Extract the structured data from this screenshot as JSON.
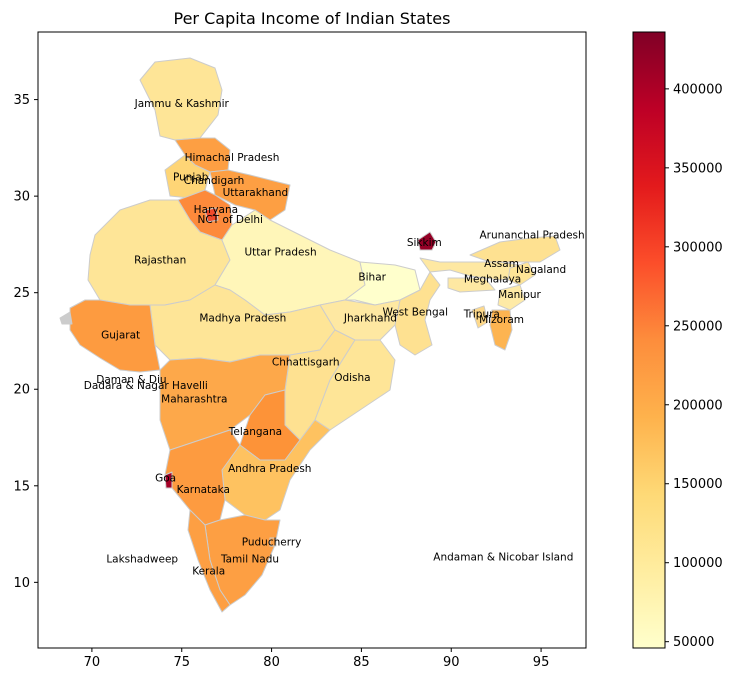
{
  "chart_data": {
    "type": "choropleth",
    "title": "Per Capita Income of Indian States",
    "xlabel": "",
    "ylabel": "",
    "xlim": [
      67,
      97.5
    ],
    "ylim": [
      6.6,
      38.5
    ],
    "x_ticks": [
      70,
      75,
      80,
      85,
      90,
      95
    ],
    "y_ticks": [
      10,
      15,
      20,
      25,
      30,
      35
    ],
    "colorbar": {
      "colormap": "YlOrRd",
      "min": 46000,
      "max": 436000,
      "ticks": [
        50000,
        100000,
        150000,
        200000,
        250000,
        300000,
        350000,
        400000
      ]
    },
    "regions": [
      {
        "name": "Jammu & Kashmir",
        "lon": 75.0,
        "lat": 34.8,
        "value": 100000
      },
      {
        "name": "Himachal Pradesh",
        "lon": 77.8,
        "lat": 32.0,
        "value": 200000
      },
      {
        "name": "Punjab",
        "lon": 75.5,
        "lat": 31.0,
        "value": 150000
      },
      {
        "name": "Chandigarh",
        "lon": 76.8,
        "lat": 30.8,
        "value": 240000
      },
      {
        "name": "Uttarakhand",
        "lon": 79.1,
        "lat": 30.2,
        "value": 200000
      },
      {
        "name": "Haryana",
        "lon": 76.9,
        "lat": 29.3,
        "value": 240000
      },
      {
        "name": "NCT of Delhi",
        "lon": 77.7,
        "lat": 28.8,
        "value": 280000
      },
      {
        "name": "Rajasthan",
        "lon": 73.8,
        "lat": 26.7,
        "value": 110000
      },
      {
        "name": "Uttar Pradesh",
        "lon": 80.5,
        "lat": 27.1,
        "value": 60000
      },
      {
        "name": "Bihar",
        "lon": 85.6,
        "lat": 25.8,
        "value": 46000
      },
      {
        "name": "Sikkim",
        "lon": 88.5,
        "lat": 27.6,
        "value": 420000
      },
      {
        "name": "Arunanchal Pradesh",
        "lon": 94.5,
        "lat": 28.0,
        "value": 130000
      },
      {
        "name": "Assam",
        "lon": 92.8,
        "lat": 26.5,
        "value": 90000
      },
      {
        "name": "Nagaland",
        "lon": 95.0,
        "lat": 26.2,
        "value": 100000
      },
      {
        "name": "Meghalaya",
        "lon": 92.3,
        "lat": 25.7,
        "value": 90000
      },
      {
        "name": "Manipur",
        "lon": 93.8,
        "lat": 24.9,
        "value": 80000
      },
      {
        "name": "Tripura",
        "lon": 91.7,
        "lat": 23.9,
        "value": 120000
      },
      {
        "name": "Mizoram",
        "lon": 92.8,
        "lat": 23.6,
        "value": 160000
      },
      {
        "name": "West Bengal",
        "lon": 88.0,
        "lat": 24.0,
        "value": 110000
      },
      {
        "name": "Jharkhand",
        "lon": 85.5,
        "lat": 23.7,
        "value": 80000
      },
      {
        "name": "Madhya Pradesh",
        "lon": 78.4,
        "lat": 23.7,
        "value": 100000
      },
      {
        "name": "Gujarat",
        "lon": 71.6,
        "lat": 22.8,
        "value": 220000
      },
      {
        "name": "Chhattisgarh",
        "lon": 81.9,
        "lat": 21.4,
        "value": 110000
      },
      {
        "name": "Odisha",
        "lon": 84.5,
        "lat": 20.6,
        "value": 100000
      },
      {
        "name": "Daman & Diu",
        "lon": 72.2,
        "lat": 20.5,
        "value": 200000
      },
      {
        "name": "Dadara & Nagar Havelli",
        "lon": 73.0,
        "lat": 20.2,
        "value": 200000
      },
      {
        "name": "Maharashtra",
        "lon": 75.7,
        "lat": 19.5,
        "value": 200000
      },
      {
        "name": "Telangana",
        "lon": 79.1,
        "lat": 17.8,
        "value": 230000
      },
      {
        "name": "Andhra Pradesh",
        "lon": 79.9,
        "lat": 15.9,
        "value": 170000
      },
      {
        "name": "Goa",
        "lon": 74.1,
        "lat": 15.4,
        "value": 420000
      },
      {
        "name": "Karnataka",
        "lon": 76.2,
        "lat": 14.8,
        "value": 220000
      },
      {
        "name": "Puducherry",
        "lon": 80.0,
        "lat": 12.1,
        "value": 200000
      },
      {
        "name": "Tamil Nadu",
        "lon": 78.8,
        "lat": 11.2,
        "value": 210000
      },
      {
        "name": "Kerala",
        "lon": 76.5,
        "lat": 10.6,
        "value": 200000
      },
      {
        "name": "Lakshadweep",
        "lon": 72.8,
        "lat": 11.2,
        "value": null
      },
      {
        "name": "Andaman & Nicobar Island",
        "lon": 92.9,
        "lat": 11.3,
        "value": null
      }
    ]
  }
}
